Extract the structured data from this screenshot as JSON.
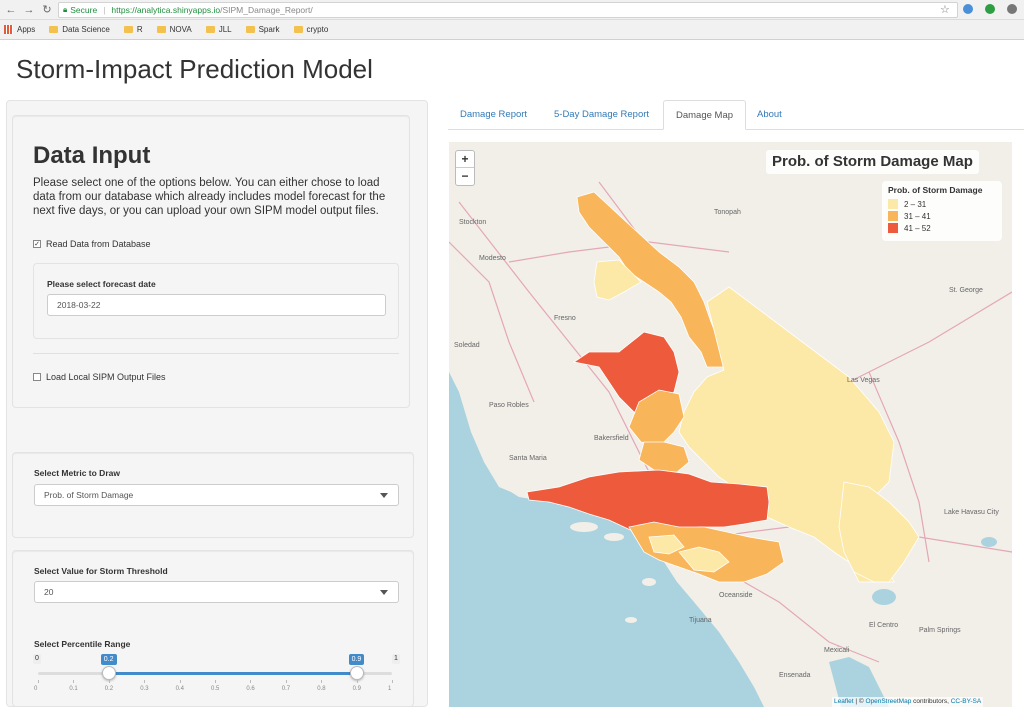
{
  "browser": {
    "secure_label": "Secure",
    "url_host": "https://analytica.shinyapps.io",
    "url_path": "/SIPM_Damage_Report/",
    "bookmarks": [
      "Apps",
      "Data Science",
      "R",
      "NOVA",
      "JLL",
      "Spark",
      "crypto"
    ]
  },
  "page": {
    "title": "Storm-Impact Prediction Model"
  },
  "sidebar": {
    "heading": "Data Input",
    "description": "Please select one of the options below. You can either chose to load data from our database which already includes model forecast for the next five days, or you can upload your own SIPM model output files.",
    "read_db_label": "Read Data from Database",
    "read_db_checked": true,
    "forecast_label": "Please select forecast date",
    "forecast_value": "2018-03-22",
    "load_local_label": "Load Local SIPM Output Files",
    "load_local_checked": false,
    "metric_label": "Select Metric to Draw",
    "metric_value": "Prob. of Storm Damage",
    "threshold_label": "Select Value for Storm Threshold",
    "threshold_value": "20",
    "percentile_label": "Select Percentile Range",
    "slider_min": "0",
    "slider_max": "1",
    "slider_low": "0.2",
    "slider_high": "0.9",
    "slider_ticks": [
      "0",
      "0.1",
      "0.2",
      "0.3",
      "0.4",
      "0.5",
      "0.6",
      "0.7",
      "0.8",
      "0.9",
      "1"
    ]
  },
  "tabs": [
    {
      "label": "Damage Report",
      "active": false
    },
    {
      "label": "5-Day Damage Report",
      "active": false
    },
    {
      "label": "Damage Map",
      "active": true
    },
    {
      "label": "About",
      "active": false
    }
  ],
  "map": {
    "title": "Prob. of Storm Damage Map",
    "zoom_in": "+",
    "zoom_out": "−",
    "legend_title": "Prob. of Storm Damage",
    "legend": [
      {
        "label": "2 – 31",
        "color": "#fce9a8"
      },
      {
        "label": "31 – 41",
        "color": "#f9b55a"
      },
      {
        "label": "41 – 52",
        "color": "#ee5a3c"
      }
    ],
    "ocean_color": "#aad3df",
    "places": [
      "Tonopah",
      "Modesto",
      "Stockton",
      "Fresno",
      "Soledad",
      "Las Vegas",
      "St. George",
      "Paso Robles",
      "Santa Maria",
      "Bakersfield",
      "Lake Havasu City",
      "Palm Springs",
      "Mexicali",
      "El Centro",
      "Tijuana",
      "Oceanside",
      "Ensenada"
    ],
    "attrib_leaflet": "Leaflet",
    "attrib_sep": " | © ",
    "attrib_osm": "OpenStreetMap",
    "attrib_contrib": " contributors, ",
    "attrib_cc": "CC-BY-SA"
  }
}
